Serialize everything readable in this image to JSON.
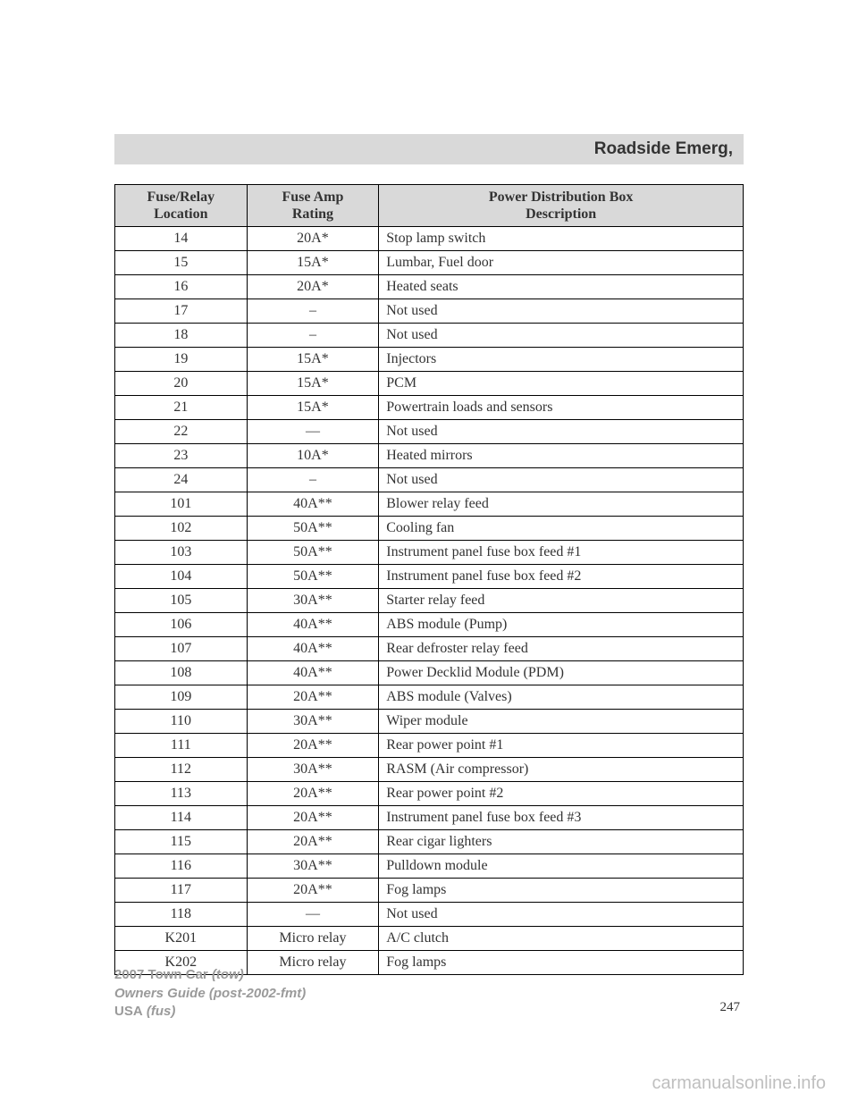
{
  "section_title": "Roadside Emerg,",
  "page_number": "247",
  "footer": {
    "line1_bold": "2007 Town Car",
    "line1_ital": "(tow)",
    "line2": "Owners Guide (post-2002-fmt)",
    "line3_bold": "USA",
    "line3_ital": "(fus)"
  },
  "watermark": "carmanualsonline.info",
  "table": {
    "headers": {
      "col1_line1": "Fuse/Relay",
      "col1_line2": "Location",
      "col2_line1": "Fuse Amp",
      "col2_line2": "Rating",
      "col3_line1": "Power Distribution Box",
      "col3_line2": "Description"
    },
    "rows": [
      {
        "loc": "14",
        "amp": "20A*",
        "desc": "Stop lamp switch"
      },
      {
        "loc": "15",
        "amp": "15A*",
        "desc": "Lumbar, Fuel door"
      },
      {
        "loc": "16",
        "amp": "20A*",
        "desc": "Heated seats"
      },
      {
        "loc": "17",
        "amp": "–",
        "desc": "Not used"
      },
      {
        "loc": "18",
        "amp": "–",
        "desc": "Not used"
      },
      {
        "loc": "19",
        "amp": "15A*",
        "desc": "Injectors"
      },
      {
        "loc": "20",
        "amp": "15A*",
        "desc": "PCM"
      },
      {
        "loc": "21",
        "amp": "15A*",
        "desc": "Powertrain loads and sensors"
      },
      {
        "loc": "22",
        "amp": "—",
        "desc": "Not used"
      },
      {
        "loc": "23",
        "amp": "10A*",
        "desc": "Heated mirrors"
      },
      {
        "loc": "24",
        "amp": "–",
        "desc": "Not used"
      },
      {
        "loc": "101",
        "amp": "40A**",
        "desc": "Blower relay feed"
      },
      {
        "loc": "102",
        "amp": "50A**",
        "desc": "Cooling fan"
      },
      {
        "loc": "103",
        "amp": "50A**",
        "desc": "Instrument panel fuse box feed #1"
      },
      {
        "loc": "104",
        "amp": "50A**",
        "desc": "Instrument panel fuse box feed #2"
      },
      {
        "loc": "105",
        "amp": "30A**",
        "desc": "Starter relay feed"
      },
      {
        "loc": "106",
        "amp": "40A**",
        "desc": "ABS module (Pump)"
      },
      {
        "loc": "107",
        "amp": "40A**",
        "desc": "Rear defroster relay feed"
      },
      {
        "loc": "108",
        "amp": "40A**",
        "desc": "Power Decklid Module (PDM)"
      },
      {
        "loc": "109",
        "amp": "20A**",
        "desc": "ABS module (Valves)"
      },
      {
        "loc": "110",
        "amp": "30A**",
        "desc": "Wiper module"
      },
      {
        "loc": "111",
        "amp": "20A**",
        "desc": "Rear power point #1"
      },
      {
        "loc": "112",
        "amp": "30A**",
        "desc": "RASM (Air compressor)"
      },
      {
        "loc": "113",
        "amp": "20A**",
        "desc": "Rear power point #2"
      },
      {
        "loc": "114",
        "amp": "20A**",
        "desc": "Instrument panel fuse box feed #3"
      },
      {
        "loc": "115",
        "amp": "20A**",
        "desc": "Rear cigar lighters"
      },
      {
        "loc": "116",
        "amp": "30A**",
        "desc": "Pulldown module"
      },
      {
        "loc": "117",
        "amp": "20A**",
        "desc": "Fog lamps"
      },
      {
        "loc": "118",
        "amp": "—",
        "desc": "Not used"
      },
      {
        "loc": "K201",
        "amp": "Micro relay",
        "desc": "A/C clutch"
      },
      {
        "loc": "K202",
        "amp": "Micro relay",
        "desc": "Fog lamps"
      }
    ]
  }
}
